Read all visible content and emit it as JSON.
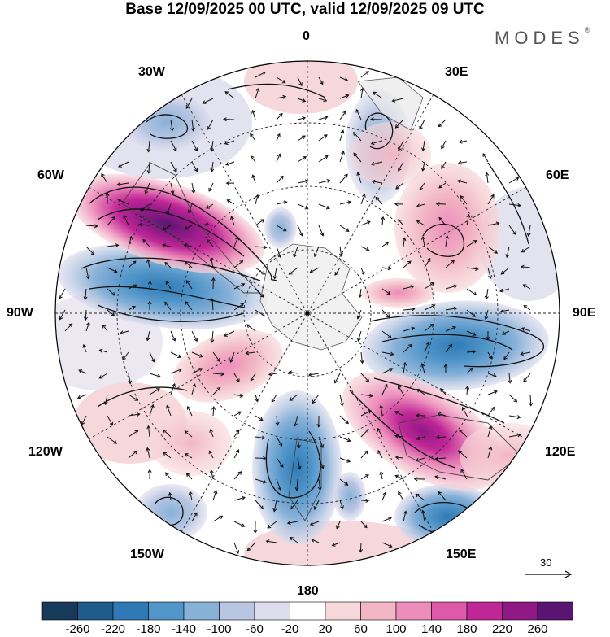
{
  "title": "Base 12/09/2025 00 UTC, valid 12/09/2025 09 UTC",
  "logo": {
    "text": "MODES",
    "mark": "®"
  },
  "longitude_labels": [
    "0",
    "30E",
    "60E",
    "90E",
    "120E",
    "150E",
    "180",
    "150W",
    "120W",
    "90W",
    "60W",
    "30W"
  ],
  "vector_reference": {
    "value": "30"
  },
  "colorbar": {
    "tick_labels": [
      "-260",
      "-220",
      "-180",
      "-140",
      "-100",
      "-60",
      "-20",
      "20",
      "60",
      "100",
      "140",
      "180",
      "220",
      "260"
    ],
    "colors": [
      "#163a58",
      "#1f5c8c",
      "#2f7ab6",
      "#5296c9",
      "#88b1d8",
      "#b8c6e2",
      "#dcdcec",
      "#ffffff",
      "#f7d8da",
      "#f2b6c4",
      "#ec8dbb",
      "#df59aa",
      "#c02796",
      "#8f1a86",
      "#5a1572"
    ]
  }
}
